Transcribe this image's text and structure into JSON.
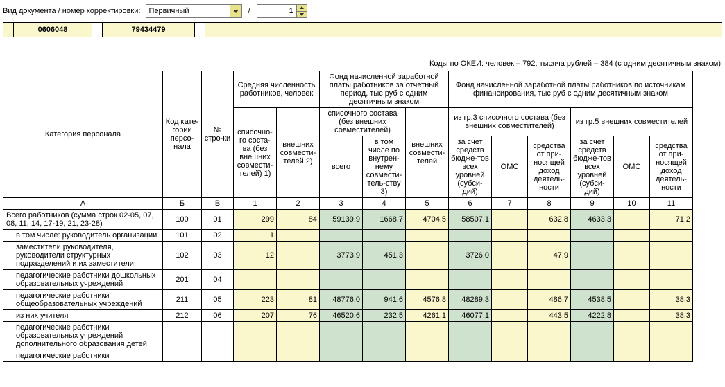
{
  "top": {
    "label": "Вид документа / номер корректировки:",
    "doc_type": "Первичный",
    "slash": "/",
    "corr_num": "1"
  },
  "codes": {
    "c1": "0606048",
    "c2": "79434479"
  },
  "okei": "Коды по ОКЕИ: человек – 792; тысяча рублей – 384 (с одним десятичным знаком)",
  "headers": {
    "cat": "Категория персонала",
    "kod": "Код кате-гории персо-нала",
    "nstr": "№ стро-ки",
    "avg_grp": "Средняя численность работников, человек",
    "fond_period": "Фонд начисленной заработной платы работников за отчетный период, тыс руб с одним десятичным знаком",
    "fond_src": "Фонд начисленной заработной платы работников по источникам финансирования, тыс руб с одним десятичным знаком",
    "c1": "списочно-го соста-ва (без внешних совмести-телей) 1)",
    "c2": "внешних совмести-телей 2)",
    "fp_sub": "списочного состава (без внешних совместителей)",
    "c3": "всего",
    "c4": "в том числе по внутрен-нему совмести-тель-ству 3)",
    "c5": "внешних совмести-телей",
    "src_gr3": "из гр.3 списочного состава (без внешних совместителей)",
    "src_gr5": "из гр.5 внешних совместителей",
    "c6": "за счет средств бюдже-тов всех уровней (субси-дий)",
    "c7": "ОМС",
    "c8": "средства от при-носящей доход деятель-ности",
    "c9": "за счет средств бюдже-тов всех уровней (субси-дий)",
    "c10": "ОМС",
    "c11": "средства от при-носящей доход деятель-ности",
    "hA": "А",
    "hB": "Б",
    "hV": "В",
    "h1": "1",
    "h2": "2",
    "h3": "3",
    "h4": "4",
    "h5": "5",
    "h6": "6",
    "h7": "7",
    "h8": "8",
    "h9": "9",
    "h10": "10",
    "h11": "11"
  },
  "rows": [
    {
      "name": "Всего работников (сумма строк 02-05, 07, 08, 11, 14, 17-19, 21, 23-28)",
      "indent": false,
      "kod": "100",
      "n": "01",
      "v": [
        "299",
        "84",
        "59139,9",
        "1668,7",
        "4704,5",
        "58507,1",
        "",
        "632,8",
        "4633,3",
        "",
        "71,2"
      ]
    },
    {
      "name": "в том числе: руководитель организации",
      "indent": true,
      "kod": "101",
      "n": "02",
      "v": [
        "1",
        "",
        "",
        "",
        "",
        "",
        "",
        "",
        "",
        "",
        ""
      ]
    },
    {
      "name": "заместители руководителя, руководители структурных подразделений и их заместители",
      "indent": true,
      "kod": "102",
      "n": "03",
      "v": [
        "12",
        "",
        "3773,9",
        "451,3",
        "",
        "3726,0",
        "",
        "47,9",
        "",
        "",
        ""
      ]
    },
    {
      "name": "педагогические работники дошкольных образовательных учреждений",
      "indent": true,
      "kod": "201",
      "n": "04",
      "v": [
        "",
        "",
        "",
        "",
        "",
        "",
        "",
        "",
        "",
        "",
        ""
      ]
    },
    {
      "name": "педагогические работники общеобразовательных  учреждений",
      "indent": true,
      "kod": "211",
      "n": "05",
      "v": [
        "223",
        "81",
        "48776,0",
        "941,6",
        "4576,8",
        "48289,3",
        "",
        "486,7",
        "4538,5",
        "",
        "38,3"
      ]
    },
    {
      "name": "из них учителя",
      "indent": true,
      "kod": "212",
      "n": "06",
      "v": [
        "207",
        "76",
        "46520,6",
        "232,5",
        "4261,1",
        "46077,1",
        "",
        "443,5",
        "4222,8",
        "",
        "38,3"
      ]
    },
    {
      "name": "педагогические работники образовательных учреждений дополнительного образования детей",
      "indent": true,
      "kod": "",
      "n": "",
      "v": [
        "",
        "",
        "",
        "",
        "",
        "",
        "",
        "",
        "",
        "",
        ""
      ]
    },
    {
      "name": "педагогические работники",
      "indent": true,
      "kod": "",
      "n": "",
      "v": [
        "",
        "",
        "",
        "",
        "",
        "",
        "",
        "",
        "",
        "",
        ""
      ]
    }
  ],
  "colbg": [
    "bg-y",
    "bg-y",
    "bg-g",
    "bg-g",
    "bg-y",
    "bg-g",
    "bg-y",
    "bg-y",
    "bg-g",
    "bg-y",
    "bg-y"
  ]
}
